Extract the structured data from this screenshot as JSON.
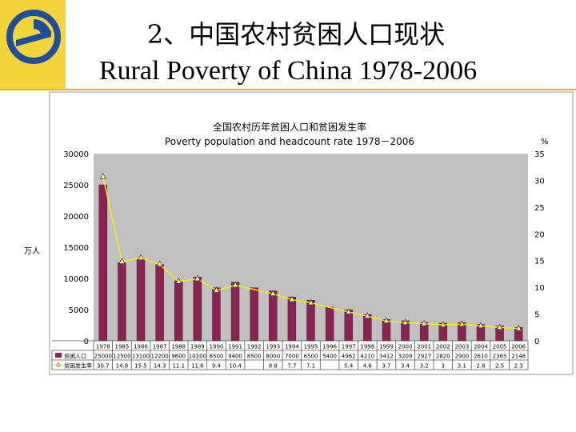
{
  "slide": {
    "title_zh": "2、中国农村贫困人口现状",
    "title_en": "Rural Poverty of China 1978-2006",
    "left_unit": "万人",
    "colors": {
      "sidebar": "#f5d33a",
      "bar": "#8b2252",
      "line": "#f2f200",
      "plot_bg": "#c0c0c0"
    }
  },
  "chart_data": {
    "type": "bar",
    "title": "全国农村历年贫困人口和贫困发生率",
    "subtitle": "Poverty population and headcount rate  1978－2006",
    "y_left_label": "万人",
    "y_right_label": "%",
    "ylim_left": [
      0,
      30000
    ],
    "ylim_right": [
      0,
      35
    ],
    "y_left_ticks": [
      "0",
      "5000",
      "10000",
      "15000",
      "20000",
      "25000",
      "30000"
    ],
    "y_right_ticks": [
      "0",
      "5",
      "10",
      "15",
      "20",
      "25",
      "30",
      "35"
    ],
    "categories": [
      "1978",
      "1985",
      "1986",
      "1987",
      "1988",
      "1989",
      "1990",
      "1991",
      "1992",
      "1993",
      "1994",
      "1995",
      "1996",
      "1997",
      "1998",
      "1999",
      "2000",
      "2001",
      "2002",
      "2003",
      "2004",
      "2005",
      "2006"
    ],
    "series": [
      {
        "name": "贫困人口",
        "type": "bar",
        "axis": "left",
        "values": [
          25000,
          12500,
          13100,
          12200,
          9600,
          10200,
          8500,
          9400,
          8500,
          8000,
          7000,
          6500,
          5400,
          4962,
          4210,
          3412,
          3209,
          2927,
          2820,
          2900,
          2610,
          2365,
          2148
        ],
        "labels": [
          "25000",
          "12500",
          "13100",
          "12200",
          "9600",
          "10200",
          "8500",
          "9400",
          "8500",
          "8000",
          "7000",
          "6500",
          "5400",
          "4962",
          "4210",
          "3412",
          "3209",
          "2927",
          "2820",
          "2900",
          "2610",
          "2365",
          "2148"
        ]
      },
      {
        "name": "贫困发生率",
        "type": "line",
        "axis": "right",
        "values": [
          30.7,
          14.8,
          15.5,
          14.3,
          11.1,
          11.6,
          9.4,
          10.4,
          null,
          8.8,
          7.7,
          7.1,
          null,
          5.4,
          4.6,
          3.7,
          3.4,
          3.2,
          3,
          3.1,
          2.8,
          2.5,
          2.3
        ],
        "labels": [
          "30.7",
          "14.8",
          "15.5",
          "14.3",
          "11.1",
          "11.6",
          "9.4",
          "10.4",
          "",
          "8.8",
          "7.7",
          "7.1",
          "",
          "5.4",
          "4.6",
          "3.7",
          "3.4",
          "3.2",
          "3",
          "3.1",
          "2.8",
          "2.5",
          "2.3"
        ]
      }
    ],
    "grid": false,
    "legend": "table-below"
  }
}
